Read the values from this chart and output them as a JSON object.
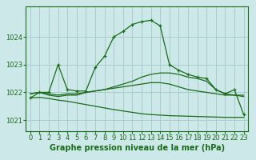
{
  "background_color": "#cce8e8",
  "grid_color": "#aacccc",
  "line_color": "#1a6b1a",
  "xlabel": "Graphe pression niveau de la mer (hPa)",
  "xlabel_fontsize": 7,
  "tick_fontsize": 6,
  "xlim": [
    -0.5,
    23.5
  ],
  "ylim": [
    1020.6,
    1025.1
  ],
  "yticks": [
    1021,
    1022,
    1023,
    1024
  ],
  "xticks": [
    0,
    1,
    2,
    3,
    4,
    5,
    6,
    7,
    8,
    9,
    10,
    11,
    12,
    13,
    14,
    15,
    16,
    17,
    18,
    19,
    20,
    21,
    22,
    23
  ],
  "lines": [
    {
      "x": [
        0,
        1,
        2,
        3,
        4,
        5,
        6,
        7,
        8,
        9,
        10,
        11,
        12,
        13,
        14,
        15,
        16,
        17,
        18,
        19,
        20,
        21,
        22,
        23
      ],
      "y": [
        1021.8,
        1022.0,
        1022.0,
        1023.0,
        1022.1,
        1022.05,
        1022.05,
        1022.9,
        1023.3,
        1024.0,
        1024.2,
        1024.45,
        1024.55,
        1024.6,
        1024.4,
        1023.0,
        1022.8,
        1022.65,
        1022.55,
        1022.5,
        1022.1,
        1021.95,
        1022.1,
        1021.2
      ],
      "marker": "+"
    },
    {
      "x": [
        0,
        1,
        2,
        3,
        4,
        5,
        6,
        7,
        8,
        9,
        10,
        11,
        12,
        13,
        14,
        15,
        16,
        17,
        18,
        19,
        20,
        21,
        22,
        23
      ],
      "y": [
        1021.95,
        1022.0,
        1021.9,
        1021.85,
        1021.9,
        1021.9,
        1022.0,
        1022.05,
        1022.1,
        1022.15,
        1022.2,
        1022.25,
        1022.3,
        1022.35,
        1022.35,
        1022.3,
        1022.2,
        1022.1,
        1022.05,
        1022.0,
        1021.95,
        1021.9,
        1021.9,
        1021.9
      ],
      "marker": null
    },
    {
      "x": [
        0,
        1,
        2,
        3,
        4,
        5,
        6,
        7,
        8,
        9,
        10,
        11,
        12,
        13,
        14,
        15,
        16,
        17,
        18,
        19,
        20,
        21,
        22,
        23
      ],
      "y": [
        1021.95,
        1022.0,
        1021.95,
        1021.9,
        1021.95,
        1021.95,
        1022.0,
        1022.05,
        1022.1,
        1022.2,
        1022.3,
        1022.4,
        1022.55,
        1022.65,
        1022.7,
        1022.7,
        1022.65,
        1022.55,
        1022.5,
        1022.4,
        1022.1,
        1021.95,
        1021.9,
        1021.85
      ],
      "marker": null
    },
    {
      "x": [
        0,
        1,
        2,
        3,
        4,
        5,
        6,
        7,
        8,
        9,
        10,
        11,
        12,
        13,
        14,
        15,
        16,
        17,
        18,
        19,
        20,
        21,
        22,
        23
      ],
      "y": [
        1021.8,
        1021.82,
        1021.78,
        1021.72,
        1021.68,
        1021.62,
        1021.56,
        1021.5,
        1021.44,
        1021.38,
        1021.33,
        1021.28,
        1021.23,
        1021.2,
        1021.18,
        1021.16,
        1021.15,
        1021.14,
        1021.13,
        1021.12,
        1021.11,
        1021.1,
        1021.1,
        1021.1
      ],
      "marker": null
    }
  ]
}
